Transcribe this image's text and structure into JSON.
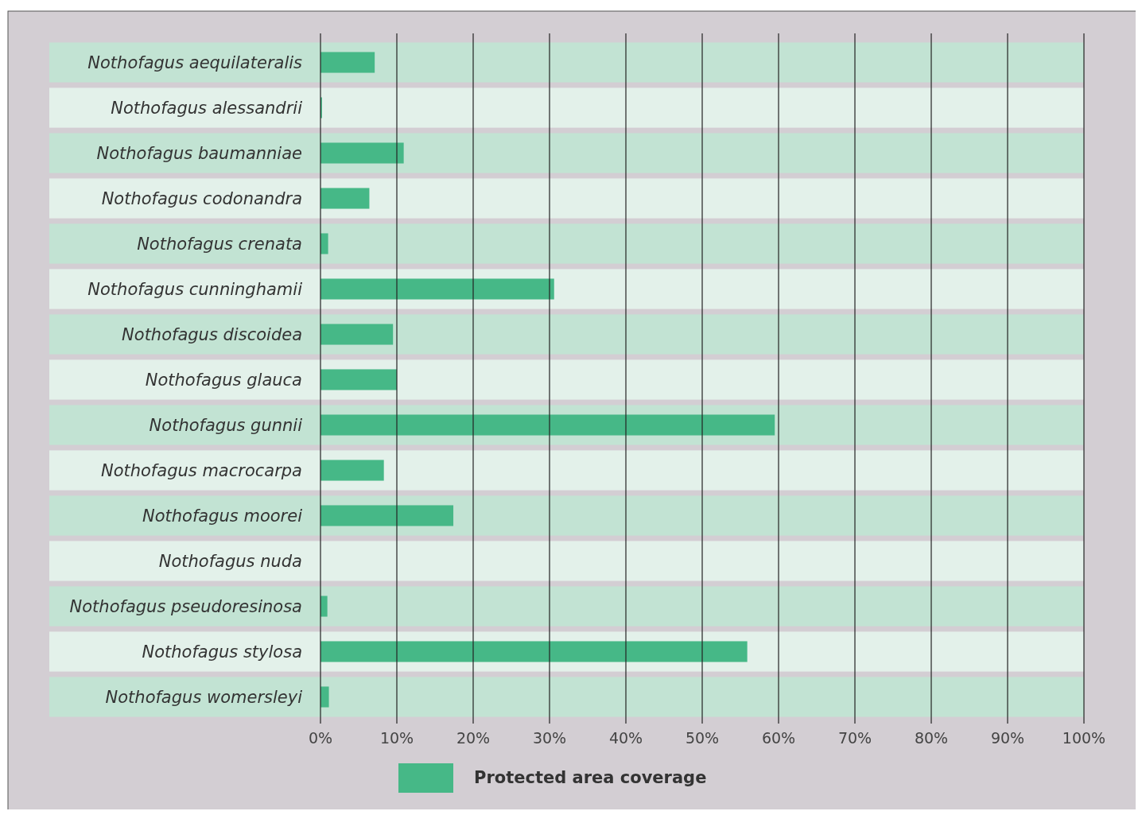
{
  "chart_data": {
    "type": "bar",
    "orientation": "horizontal",
    "categories": [
      "Nothofagus aequilateralis",
      "Nothofagus alessandrii",
      "Nothofagus baumanniae",
      "Nothofagus codonandra",
      "Nothofagus crenata",
      "Nothofagus cunninghamii",
      "Nothofagus discoidea",
      "Nothofagus glauca",
      "Nothofagus gunnii",
      "Nothofagus macrocarpa",
      "Nothofagus moorei",
      "Nothofagus nuda",
      "Nothofagus pseudoresinosa",
      "Nothofagus stylosa",
      "Nothofagus womersleyi"
    ],
    "series": [
      {
        "name": "Protected area coverage",
        "color": "#46b887",
        "values": [
          7.1,
          0.2,
          10.9,
          6.4,
          1.0,
          30.6,
          9.5,
          10.0,
          59.5,
          8.3,
          17.4,
          0,
          0.9,
          55.9,
          1.1
        ]
      }
    ],
    "xlim": [
      0,
      100
    ],
    "xticks": [
      {
        "value": 0,
        "label": "0%"
      },
      {
        "value": 10,
        "label": "10%"
      },
      {
        "value": 20,
        "label": "20%"
      },
      {
        "value": 30,
        "label": "30%"
      },
      {
        "value": 40,
        "label": "40%"
      },
      {
        "value": 50,
        "label": "50%"
      },
      {
        "value": 60,
        "label": "60%"
      },
      {
        "value": 70,
        "label": "70%"
      },
      {
        "value": 80,
        "label": "80%"
      },
      {
        "value": 90,
        "label": "90%"
      },
      {
        "value": 100,
        "label": "100%"
      }
    ],
    "bands": [
      {
        "axis": "y",
        "from": "Nothofagus aequilateralis",
        "to": "Nothofagus aequilateralis",
        "color": "#c2e3d3"
      },
      {
        "axis": "y",
        "from": "Nothofagus alessandrii",
        "to": "Nothofagus alessandrii",
        "color": "#e3f1ea"
      },
      {
        "axis": "y",
        "from": "Nothofagus baumanniae",
        "to": "Nothofagus baumanniae",
        "color": "#c2e3d3"
      },
      {
        "axis": "y",
        "from": "Nothofagus codonandra",
        "to": "Nothofagus codonandra",
        "color": "#e3f1ea"
      },
      {
        "axis": "y",
        "from": "Nothofagus crenata",
        "to": "Nothofagus crenata",
        "color": "#c2e3d3"
      },
      {
        "axis": "y",
        "from": "Nothofagus cunninghamii",
        "to": "Nothofagus cunninghamii",
        "color": "#e3f1ea"
      },
      {
        "axis": "y",
        "from": "Nothofagus discoidea",
        "to": "Nothofagus discoidea",
        "color": "#c2e3d3"
      },
      {
        "axis": "y",
        "from": "Nothofagus glauca",
        "to": "Nothofagus glauca",
        "color": "#e3f1ea"
      },
      {
        "axis": "y",
        "from": "Nothofagus gunnii",
        "to": "Nothofagus gunnii",
        "color": "#c2e3d3"
      },
      {
        "axis": "y",
        "from": "Nothofagus macrocarpa",
        "to": "Nothofagus macrocarpa",
        "color": "#e3f1ea"
      },
      {
        "axis": "y",
        "from": "Nothofagus moorei",
        "to": "Nothofagus moorei",
        "color": "#c2e3d3"
      },
      {
        "axis": "y",
        "from": "Nothofagus nuda",
        "to": "Nothofagus nuda",
        "color": "#e3f1ea"
      },
      {
        "axis": "y",
        "from": "Nothofagus pseudoresinosa",
        "to": "Nothofagus pseudoresinosa",
        "color": "#c2e3d3"
      },
      {
        "axis": "y",
        "from": "Nothofagus stylosa",
        "to": "Nothofagus stylosa",
        "color": "#e3f1ea"
      },
      {
        "axis": "y",
        "from": "Nothofagus womersleyi",
        "to": "Nothofagus womersleyi",
        "color": "#c2e3d3"
      }
    ],
    "grid": "x",
    "legend": "bottom"
  }
}
